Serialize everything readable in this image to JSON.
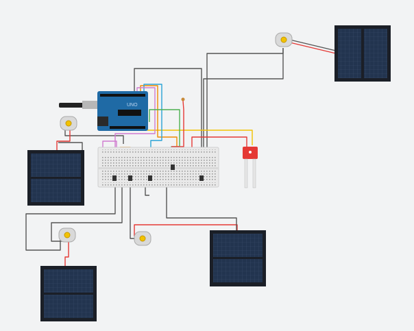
{
  "canvas": {
    "background": "#f2f3f4"
  },
  "components": {
    "arduino": {
      "name": "arduino-uno",
      "board_color": "#1f6aa5",
      "label": "UNO"
    },
    "breadboard": {
      "name": "breadboard",
      "color": "#e9e9e9"
    },
    "soil_sensor": {
      "name": "soil-moisture-sensor",
      "color": "#e53935"
    },
    "solar_panels": [
      {
        "name": "solar-panel-top-right"
      },
      {
        "name": "solar-panel-left"
      },
      {
        "name": "solar-panel-bottom-left"
      },
      {
        "name": "solar-panel-bottom-center"
      }
    ],
    "motors": [
      {
        "name": "dc-motor-top-right"
      },
      {
        "name": "dc-motor-left"
      },
      {
        "name": "dc-motor-bottom-left"
      },
      {
        "name": "dc-motor-center"
      }
    ]
  },
  "colors": {
    "panel_cell": "#22344f",
    "panel_frame": "#1b1f27",
    "wire_black": "#4a4a4a",
    "wire_red": "#e53935",
    "wire_yellow": "#f2c200",
    "wire_orange": "#f08a00",
    "wire_blue": "#29a3d6",
    "wire_green": "#4caf50",
    "wire_pink": "#d07ad0"
  }
}
